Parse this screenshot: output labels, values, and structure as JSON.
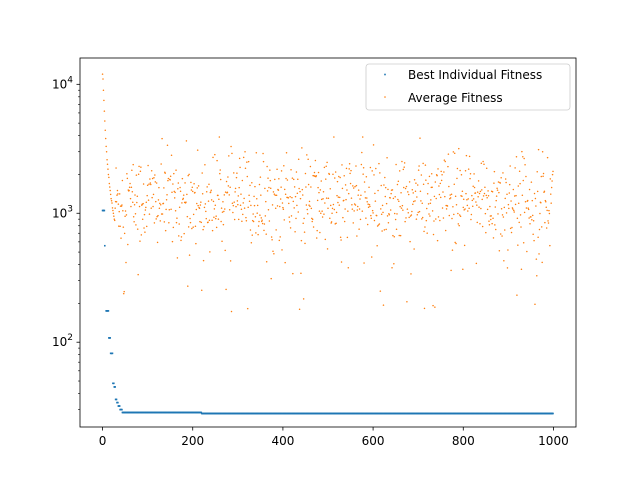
{
  "chart_data": {
    "type": "scatter",
    "title": "",
    "xlabel": "",
    "ylabel": "",
    "xlim": [
      -50,
      1050
    ],
    "ylim": [
      22,
      16000
    ],
    "yscale": "log",
    "grid": false,
    "legend": "top-right",
    "x_ticks": [
      {
        "value": 0,
        "label": "0"
      },
      {
        "value": 200,
        "label": "200"
      },
      {
        "value": 400,
        "label": "400"
      },
      {
        "value": 600,
        "label": "600"
      },
      {
        "value": 800,
        "label": "800"
      },
      {
        "value": 1000,
        "label": "1000"
      }
    ],
    "y_ticks": [
      {
        "value": 100,
        "base": "10",
        "exp": "2"
      },
      {
        "value": 1000,
        "base": "10",
        "exp": "3"
      },
      {
        "value": 10000,
        "base": "10",
        "exp": "4"
      }
    ],
    "series": [
      {
        "name": "Best Individual Fitness",
        "color": "#1f77b4",
        "marker": "square",
        "segments": [
          {
            "x_start": 0,
            "x_end": 4,
            "y": 1050
          },
          {
            "x_start": 5,
            "x_end": 5,
            "y": 560
          },
          {
            "x_start": 8,
            "x_end": 13,
            "y": 175
          },
          {
            "x_start": 14,
            "x_end": 17,
            "y": 108
          },
          {
            "x_start": 18,
            "x_end": 22,
            "y": 82
          },
          {
            "x_start": 23,
            "x_end": 25,
            "y": 48
          },
          {
            "x_start": 26,
            "x_end": 28,
            "y": 45
          },
          {
            "x_start": 29,
            "x_end": 31,
            "y": 36
          },
          {
            "x_start": 32,
            "x_end": 34,
            "y": 34
          },
          {
            "x_start": 35,
            "x_end": 38,
            "y": 32
          },
          {
            "x_start": 39,
            "x_end": 43,
            "y": 30
          },
          {
            "x_start": 44,
            "x_end": 219,
            "y": 28.5
          },
          {
            "x_start": 220,
            "x_end": 999,
            "y": 28
          }
        ]
      },
      {
        "name": "Average Fitness",
        "color": "#ff7f0e",
        "marker": "dot",
        "early": [
          [
            0,
            12000
          ],
          [
            1,
            11000
          ],
          [
            2,
            9000
          ],
          [
            3,
            7500
          ],
          [
            4,
            6200
          ],
          [
            5,
            5200
          ],
          [
            6,
            4400
          ],
          [
            7,
            3800
          ],
          [
            8,
            3300
          ],
          [
            9,
            3000
          ],
          [
            10,
            2600
          ],
          [
            11,
            2400
          ],
          [
            12,
            2200
          ],
          [
            13,
            2000
          ],
          [
            14,
            1900
          ],
          [
            15,
            1700
          ],
          [
            16,
            1600
          ],
          [
            17,
            1500
          ],
          [
            18,
            1400
          ],
          [
            19,
            1300
          ],
          [
            20,
            1250
          ],
          [
            21,
            1200
          ],
          [
            22,
            1100
          ],
          [
            23,
            1050
          ],
          [
            24,
            1000
          ],
          [
            25,
            950
          ],
          [
            26,
            900
          ],
          [
            27,
            880
          ]
        ],
        "median_rest": 1250,
        "spread_range": [
          150,
          3900
        ]
      }
    ]
  }
}
